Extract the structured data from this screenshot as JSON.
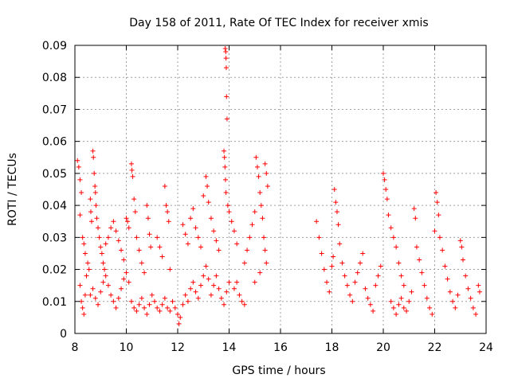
{
  "chart_data": {
    "type": "scatter",
    "title": "Day 158 of 2011, Rate Of TEC Index for receiver xmis",
    "xlabel": "GPS time / hours",
    "ylabel": "ROTI / TECUs",
    "xlim": [
      8,
      24
    ],
    "ylim": [
      0,
      0.09
    ],
    "xticks": [
      "8",
      "10",
      "12",
      "14",
      "16",
      "18",
      "20",
      "22",
      "24"
    ],
    "yticks": [
      "0",
      "0.01",
      "0.02",
      "0.03",
      "0.04",
      "0.05",
      "0.06",
      "0.07",
      "0.08",
      "0.09"
    ],
    "grid": true,
    "marker": "+",
    "color": "#ff0000",
    "series": [
      {
        "points": [
          [
            8.1,
            0.054
          ],
          [
            8.15,
            0.052
          ],
          [
            8.2,
            0.048
          ],
          [
            8.25,
            0.044
          ],
          [
            8.2,
            0.037
          ],
          [
            8.3,
            0.03
          ],
          [
            8.35,
            0.028
          ],
          [
            8.4,
            0.025
          ],
          [
            8.2,
            0.015
          ],
          [
            8.25,
            0.01
          ],
          [
            8.3,
            0.008
          ],
          [
            8.35,
            0.006
          ],
          [
            8.4,
            0.012
          ],
          [
            8.45,
            0.018
          ],
          [
            8.5,
            0.022
          ],
          [
            8.55,
            0.02
          ],
          [
            8.6,
            0.042
          ],
          [
            8.62,
            0.038
          ],
          [
            8.65,
            0.035
          ],
          [
            8.7,
            0.057
          ],
          [
            8.72,
            0.055
          ],
          [
            8.75,
            0.05
          ],
          [
            8.78,
            0.046
          ],
          [
            8.8,
            0.044
          ],
          [
            8.82,
            0.04
          ],
          [
            8.85,
            0.036
          ],
          [
            8.9,
            0.033
          ],
          [
            8.95,
            0.03
          ],
          [
            9.0,
            0.027
          ],
          [
            9.05,
            0.025
          ],
          [
            9.1,
            0.022
          ],
          [
            9.15,
            0.02
          ],
          [
            8.6,
            0.012
          ],
          [
            8.7,
            0.014
          ],
          [
            8.8,
            0.011
          ],
          [
            8.9,
            0.009
          ],
          [
            9.0,
            0.013
          ],
          [
            9.1,
            0.016
          ],
          [
            9.2,
            0.018
          ],
          [
            9.3,
            0.015
          ],
          [
            9.4,
            0.012
          ],
          [
            9.5,
            0.01
          ],
          [
            9.6,
            0.008
          ],
          [
            9.7,
            0.011
          ],
          [
            9.8,
            0.014
          ],
          [
            9.9,
            0.017
          ],
          [
            10.0,
            0.019
          ],
          [
            10.1,
            0.016
          ],
          [
            9.2,
            0.028
          ],
          [
            9.3,
            0.03
          ],
          [
            9.4,
            0.033
          ],
          [
            9.5,
            0.035
          ],
          [
            9.6,
            0.032
          ],
          [
            9.7,
            0.029
          ],
          [
            9.8,
            0.026
          ],
          [
            9.9,
            0.023
          ],
          [
            10.0,
            0.036
          ],
          [
            10.05,
            0.035
          ],
          [
            10.1,
            0.033
          ],
          [
            10.2,
            0.053
          ],
          [
            10.22,
            0.051
          ],
          [
            10.25,
            0.049
          ],
          [
            10.3,
            0.042
          ],
          [
            10.35,
            0.038
          ],
          [
            10.4,
            0.03
          ],
          [
            10.5,
            0.026
          ],
          [
            10.6,
            0.022
          ],
          [
            10.7,
            0.019
          ],
          [
            10.8,
            0.04
          ],
          [
            10.85,
            0.036
          ],
          [
            10.9,
            0.031
          ],
          [
            10.95,
            0.027
          ],
          [
            10.2,
            0.01
          ],
          [
            10.3,
            0.008
          ],
          [
            10.4,
            0.007
          ],
          [
            10.5,
            0.009
          ],
          [
            10.6,
            0.011
          ],
          [
            10.7,
            0.008
          ],
          [
            10.8,
            0.006
          ],
          [
            10.9,
            0.009
          ],
          [
            11.0,
            0.012
          ],
          [
            11.1,
            0.01
          ],
          [
            11.2,
            0.008
          ],
          [
            11.3,
            0.007
          ],
          [
            11.4,
            0.009
          ],
          [
            11.5,
            0.011
          ],
          [
            11.6,
            0.008
          ],
          [
            11.7,
            0.007
          ],
          [
            11.2,
            0.03
          ],
          [
            11.3,
            0.027
          ],
          [
            11.4,
            0.024
          ],
          [
            11.5,
            0.046
          ],
          [
            11.55,
            0.04
          ],
          [
            11.6,
            0.038
          ],
          [
            11.65,
            0.035
          ],
          [
            11.7,
            0.02
          ],
          [
            11.8,
            0.01
          ],
          [
            11.9,
            0.008
          ],
          [
            12.0,
            0.006
          ],
          [
            12.05,
            0.003
          ],
          [
            12.1,
            0.005
          ],
          [
            12.2,
            0.009
          ],
          [
            12.3,
            0.012
          ],
          [
            12.4,
            0.01
          ],
          [
            12.5,
            0.014
          ],
          [
            12.6,
            0.016
          ],
          [
            12.7,
            0.013
          ],
          [
            12.8,
            0.011
          ],
          [
            12.9,
            0.015
          ],
          [
            13.0,
            0.018
          ],
          [
            13.1,
            0.021
          ],
          [
            13.2,
            0.017
          ],
          [
            12.2,
            0.034
          ],
          [
            12.3,
            0.031
          ],
          [
            12.4,
            0.028
          ],
          [
            12.5,
            0.036
          ],
          [
            12.6,
            0.039
          ],
          [
            12.7,
            0.033
          ],
          [
            12.8,
            0.03
          ],
          [
            12.9,
            0.027
          ],
          [
            13.0,
            0.043
          ],
          [
            13.1,
            0.049
          ],
          [
            13.15,
            0.046
          ],
          [
            13.2,
            0.041
          ],
          [
            13.3,
            0.036
          ],
          [
            13.4,
            0.032
          ],
          [
            13.5,
            0.029
          ],
          [
            13.6,
            0.026
          ],
          [
            13.3,
            0.012
          ],
          [
            13.4,
            0.015
          ],
          [
            13.5,
            0.018
          ],
          [
            13.6,
            0.014
          ],
          [
            13.7,
            0.011
          ],
          [
            13.8,
            0.009
          ],
          [
            13.9,
            0.013
          ],
          [
            14.0,
            0.016
          ],
          [
            13.85,
            0.089
          ],
          [
            13.87,
            0.088
          ],
          [
            13.88,
            0.086
          ],
          [
            13.89,
            0.083
          ],
          [
            13.9,
            0.074
          ],
          [
            13.92,
            0.067
          ],
          [
            13.8,
            0.057
          ],
          [
            13.82,
            0.055
          ],
          [
            13.84,
            0.052
          ],
          [
            13.86,
            0.048
          ],
          [
            13.88,
            0.044
          ],
          [
            13.95,
            0.04
          ],
          [
            14.0,
            0.038
          ],
          [
            14.1,
            0.035
          ],
          [
            14.2,
            0.032
          ],
          [
            14.3,
            0.028
          ],
          [
            14.4,
            0.012
          ],
          [
            14.5,
            0.01
          ],
          [
            14.6,
            0.009
          ],
          [
            14.2,
            0.014
          ],
          [
            14.3,
            0.016
          ],
          [
            14.6,
            0.022
          ],
          [
            14.7,
            0.026
          ],
          [
            14.8,
            0.03
          ],
          [
            14.9,
            0.034
          ],
          [
            15.0,
            0.038
          ],
          [
            15.05,
            0.055
          ],
          [
            15.1,
            0.052
          ],
          [
            15.15,
            0.049
          ],
          [
            15.2,
            0.044
          ],
          [
            15.25,
            0.04
          ],
          [
            15.3,
            0.036
          ],
          [
            15.35,
            0.03
          ],
          [
            15.4,
            0.053
          ],
          [
            15.45,
            0.05
          ],
          [
            15.5,
            0.046
          ],
          [
            15.45,
            0.022
          ],
          [
            15.4,
            0.026
          ],
          [
            15.2,
            0.019
          ],
          [
            15.0,
            0.016
          ],
          [
            17.4,
            0.035
          ],
          [
            17.5,
            0.03
          ],
          [
            17.6,
            0.025
          ],
          [
            17.7,
            0.02
          ],
          [
            17.8,
            0.016
          ],
          [
            17.9,
            0.013
          ],
          [
            18.0,
            0.021
          ],
          [
            18.05,
            0.024
          ],
          [
            18.1,
            0.045
          ],
          [
            18.15,
            0.041
          ],
          [
            18.2,
            0.038
          ],
          [
            18.25,
            0.034
          ],
          [
            18.3,
            0.028
          ],
          [
            18.4,
            0.022
          ],
          [
            18.5,
            0.018
          ],
          [
            18.6,
            0.015
          ],
          [
            18.7,
            0.012
          ],
          [
            18.8,
            0.01
          ],
          [
            18.9,
            0.016
          ],
          [
            19.0,
            0.019
          ],
          [
            19.1,
            0.022
          ],
          [
            19.2,
            0.025
          ],
          [
            19.3,
            0.014
          ],
          [
            19.4,
            0.011
          ],
          [
            19.5,
            0.009
          ],
          [
            19.6,
            0.007
          ],
          [
            19.7,
            0.015
          ],
          [
            19.8,
            0.018
          ],
          [
            19.9,
            0.021
          ],
          [
            20.0,
            0.05
          ],
          [
            20.05,
            0.048
          ],
          [
            20.1,
            0.045
          ],
          [
            20.15,
            0.042
          ],
          [
            20.2,
            0.037
          ],
          [
            20.3,
            0.033
          ],
          [
            20.4,
            0.03
          ],
          [
            20.5,
            0.027
          ],
          [
            20.6,
            0.022
          ],
          [
            20.7,
            0.018
          ],
          [
            20.8,
            0.015
          ],
          [
            20.3,
            0.01
          ],
          [
            20.4,
            0.008
          ],
          [
            20.5,
            0.006
          ],
          [
            20.6,
            0.009
          ],
          [
            20.7,
            0.011
          ],
          [
            20.8,
            0.008
          ],
          [
            20.9,
            0.007
          ],
          [
            21.0,
            0.01
          ],
          [
            21.1,
            0.013
          ],
          [
            21.2,
            0.039
          ],
          [
            21.25,
            0.036
          ],
          [
            21.3,
            0.027
          ],
          [
            21.4,
            0.023
          ],
          [
            21.5,
            0.019
          ],
          [
            21.6,
            0.015
          ],
          [
            21.7,
            0.011
          ],
          [
            21.8,
            0.008
          ],
          [
            21.9,
            0.006
          ],
          [
            22.0,
            0.032
          ],
          [
            22.05,
            0.044
          ],
          [
            22.1,
            0.041
          ],
          [
            22.15,
            0.037
          ],
          [
            22.2,
            0.03
          ],
          [
            22.3,
            0.026
          ],
          [
            22.4,
            0.021
          ],
          [
            22.5,
            0.017
          ],
          [
            22.6,
            0.013
          ],
          [
            22.7,
            0.01
          ],
          [
            22.8,
            0.008
          ],
          [
            22.9,
            0.012
          ],
          [
            23.0,
            0.029
          ],
          [
            23.05,
            0.027
          ],
          [
            23.1,
            0.023
          ],
          [
            23.2,
            0.018
          ],
          [
            23.3,
            0.014
          ],
          [
            23.4,
            0.011
          ],
          [
            23.5,
            0.008
          ],
          [
            23.6,
            0.006
          ],
          [
            23.7,
            0.015
          ],
          [
            23.75,
            0.013
          ]
        ]
      }
    ]
  }
}
